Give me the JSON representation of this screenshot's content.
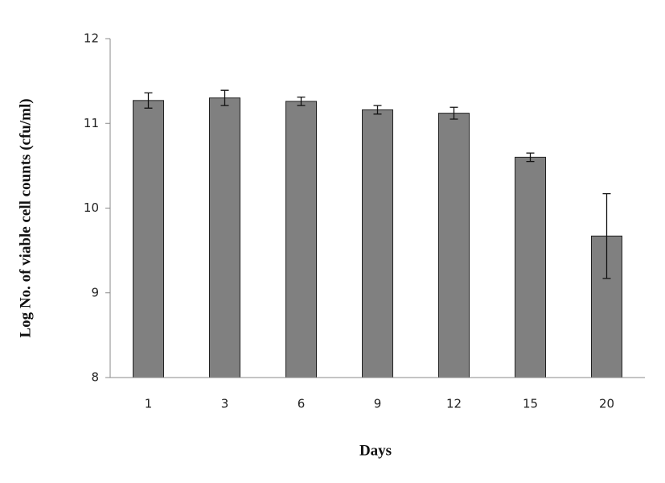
{
  "chart_data": {
    "type": "bar",
    "x_label": "Days",
    "y_label": "Log No. of viable  cell counts  (cfu/ml)",
    "categories": [
      "1",
      "3",
      "6",
      "9",
      "12",
      "15",
      "20"
    ],
    "values": [
      11.27,
      11.3,
      11.26,
      11.16,
      11.12,
      10.6,
      9.67
    ],
    "errors": [
      0.09,
      0.09,
      0.05,
      0.05,
      0.07,
      0.05,
      0.5
    ],
    "color": "#808080",
    "ylim": [
      8,
      12
    ],
    "yticks": [
      8,
      9,
      10,
      11,
      12
    ],
    "grid": false
  }
}
